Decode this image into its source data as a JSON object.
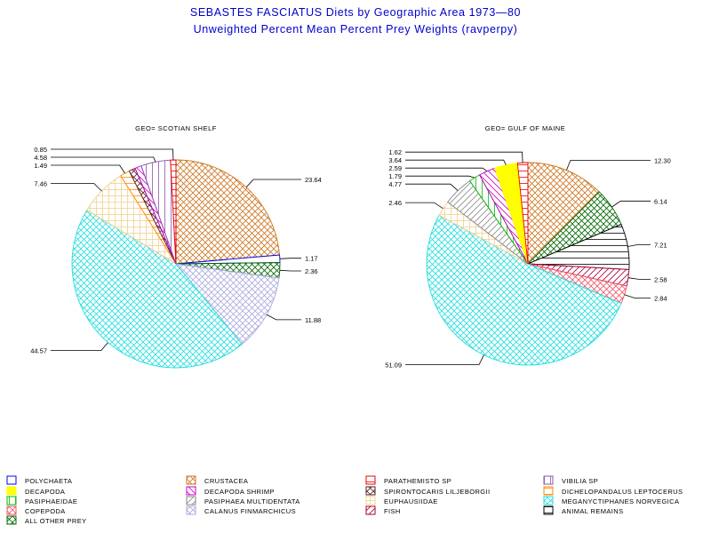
{
  "title": "SEBASTES FASCIATUS Diets by Geographic Area 1973—80",
  "subtitle": "Unweighted Percent Mean Percent Prey  Weights (ravperpy)",
  "categories": [
    {
      "name": "POLYCHAETA",
      "color": "#0000ff",
      "pattern": "empty"
    },
    {
      "name": "CRUSTACEA",
      "color": "#cc7722",
      "pattern": "crosshatch-diag"
    },
    {
      "name": "PARATHEMISTO SP",
      "color": "#ee0000",
      "pattern": "horizontal"
    },
    {
      "name": "VIBILIA SP",
      "color": "#8855aa",
      "pattern": "vertical"
    },
    {
      "name": "DECAPODA",
      "color": "#ffff00",
      "pattern": "solid"
    },
    {
      "name": "DECAPODA SHRIMP",
      "color": "#cc00cc",
      "pattern": "diag-left"
    },
    {
      "name": "SPIRONTOCARIS LILJEBORGII",
      "color": "#552222",
      "pattern": "crosshatch-diag"
    },
    {
      "name": "DICHELOPANDALUS LEPTOCERUS",
      "color": "#ff8800",
      "pattern": "horizontal"
    },
    {
      "name": "PASIPHAEIDAE",
      "color": "#00bb00",
      "pattern": "vertical"
    },
    {
      "name": "PASIPHAEA MULTIDENTATA",
      "color": "#888888",
      "pattern": "diag-right"
    },
    {
      "name": "EUPHAUSIIDAE",
      "color": "#f0d090",
      "pattern": "grid"
    },
    {
      "name": "MEGANYCTIPHANES NORVEGICA",
      "color": "#22dddd",
      "pattern": "crosshatch-diag"
    },
    {
      "name": "COPEPODA",
      "color": "#ee5566",
      "pattern": "crosshatch-diag"
    },
    {
      "name": "CALANUS FINMARCHICUS",
      "color": "#aaaadd",
      "pattern": "crosshatch-diag"
    },
    {
      "name": "FISH",
      "color": "#aa0033",
      "pattern": "diag-right"
    },
    {
      "name": "ANIMAL REMAINS",
      "color": "#000000",
      "pattern": "horizontal"
    },
    {
      "name": "ALL OTHER PREY",
      "color": "#006600",
      "pattern": "crosshatch-diag"
    }
  ],
  "chart_data": [
    {
      "type": "pie",
      "title": "GEO= SCOTIAN SHELF",
      "slices": [
        {
          "category": "CRUSTACEA",
          "value": 23.64,
          "label": "23.64"
        },
        {
          "category": "POLYCHAETA",
          "value": 1.17,
          "label": "1.17"
        },
        {
          "category": "ALL OTHER PREY",
          "value": 2.36,
          "label": "2.36"
        },
        {
          "category": "CALANUS FINMARCHICUS",
          "value": 11.88,
          "label": "11.88"
        },
        {
          "category": "MEGANYCTIPHANES NORVEGICA",
          "value": 44.57,
          "label": "44.57"
        },
        {
          "category": "EUPHAUSIIDAE",
          "value": 7.46,
          "label": "7.46"
        },
        {
          "category": "DICHELOPANDALUS LEPTOCERUS",
          "value": 1.49,
          "label": "1.49"
        },
        {
          "category": "SPIRONTOCARIS LILJEBORGII",
          "value": 1.0,
          "label": ""
        },
        {
          "category": "DECAPODA SHRIMP",
          "value": 1.0,
          "label": ""
        },
        {
          "category": "VIBILIA SP",
          "value": 4.58,
          "label": "4.58"
        },
        {
          "category": "PARATHEMISTO SP",
          "value": 0.85,
          "label": "0.85"
        }
      ]
    },
    {
      "type": "pie",
      "title": "GEO= GULF OF MAINE",
      "slices": [
        {
          "category": "CRUSTACEA",
          "value": 12.3,
          "label": "12.30"
        },
        {
          "category": "ALL OTHER PREY",
          "value": 6.14,
          "label": "6.14"
        },
        {
          "category": "ANIMAL REMAINS",
          "value": 7.21,
          "label": "7.21"
        },
        {
          "category": "FISH",
          "value": 2.58,
          "label": "2.58"
        },
        {
          "category": "COPEPODA",
          "value": 2.84,
          "label": "2.84"
        },
        {
          "category": "MEGANYCTIPHANES NORVEGICA",
          "value": 51.09,
          "label": "51.09"
        },
        {
          "category": "EUPHAUSIIDAE",
          "value": 2.46,
          "label": "2.46"
        },
        {
          "category": "PASIPHAEA MULTIDENTATA",
          "value": 4.77,
          "label": "4.77"
        },
        {
          "category": "PASIPHAEIDAE",
          "value": 1.79,
          "label": "1.79"
        },
        {
          "category": "DECAPODA SHRIMP",
          "value": 2.59,
          "label": "2.59"
        },
        {
          "category": "DECAPODA",
          "value": 3.64,
          "label": "3.64"
        },
        {
          "category": "PARATHEMISTO SP",
          "value": 1.62,
          "label": "1.62"
        }
      ]
    }
  ]
}
